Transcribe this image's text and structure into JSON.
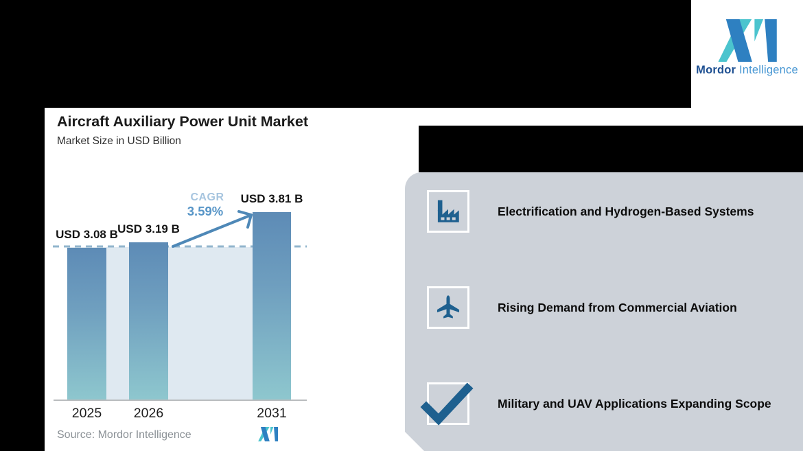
{
  "brand": {
    "name_bold": "Mordor",
    "name_light": "Intelligence",
    "teal": "#4bc4ce",
    "blue": "#2e80c1"
  },
  "chart_panel": {
    "title": "Aircraft Auxiliary Power Unit Market",
    "subtitle": "Market Size in USD Billion",
    "cagr_label": "CAGR",
    "cagr_value": "3.59%",
    "source_label": "Source: Mordor Intelligence"
  },
  "chart_data": {
    "type": "bar",
    "title": "Aircraft Auxiliary Power Unit Market",
    "subtitle": "Market Size in USD Billion",
    "categories": [
      "2025",
      "2026",
      "2031"
    ],
    "values": [
      3.08,
      3.19,
      3.81
    ],
    "bar_labels": [
      "USD 3.08 B",
      "USD 3.19 B",
      "USD 3.81 B"
    ],
    "cagr_percent": "3.59%",
    "unit": "USD Billion",
    "ylim": [
      0,
      4.3
    ],
    "grid": false,
    "legend": "none",
    "source": "Source: Mordor Intelligence",
    "annotations": [
      "dashed reference line at 2025 level",
      "CAGR arrow from 2026 bar to 2031 bar"
    ],
    "colors": {
      "bar_gradient_top": "#5d8bb6",
      "bar_gradient_bottom": "#8ec7ce",
      "reference_area": "#dfe9f1",
      "dashed_line": "#92b5cd",
      "arrow": "#4e88b7",
      "cagr_label": "#a7c5df",
      "cagr_value": "#5795c7"
    }
  },
  "highlights": {
    "panel_color": "#cdd2d9",
    "icon_color": "#1e608f",
    "items": [
      {
        "icon": "factory-icon",
        "label": "Electrification and Hydrogen-Based Systems"
      },
      {
        "icon": "airplane-icon",
        "label": "Rising Demand from Commercial Aviation"
      },
      {
        "icon": "checkmark-icon",
        "label": "Military and UAV Applications Expanding Scope"
      }
    ]
  }
}
